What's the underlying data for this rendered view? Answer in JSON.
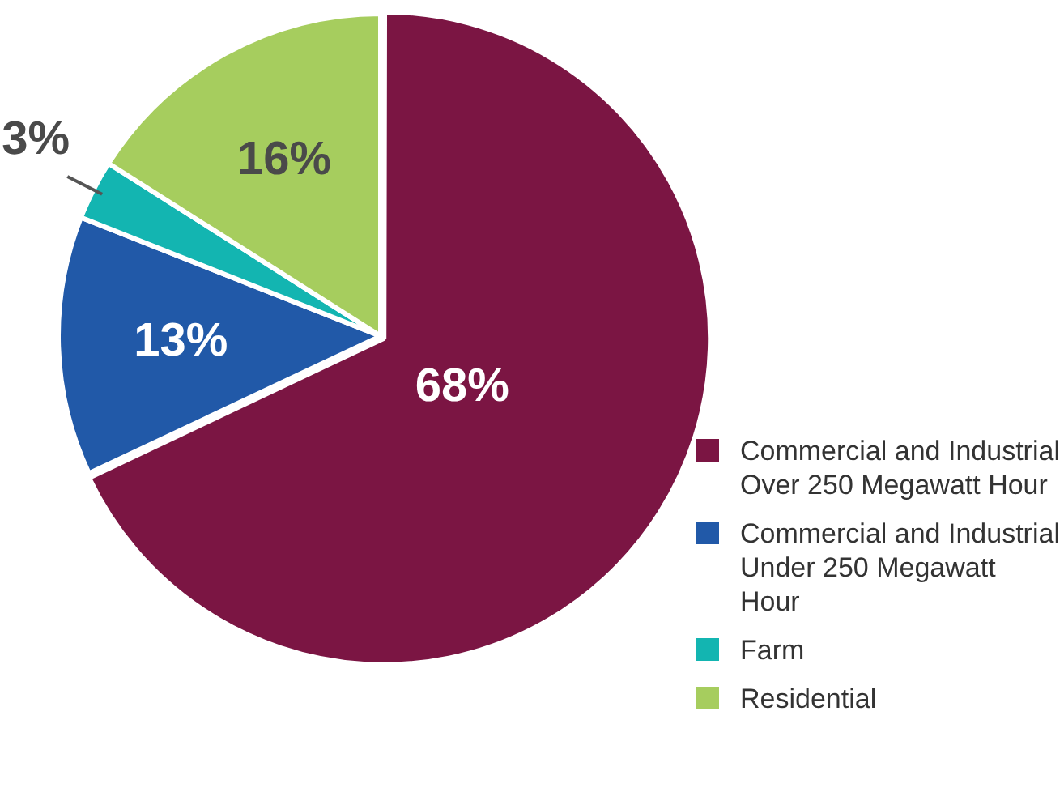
{
  "chart_data": {
    "type": "pie",
    "categories": [
      "Commercial and Industrial Over 250 Megawatt Hour",
      "Commercial and Industrial Under 250 Megawatt Hour",
      "Farm",
      "Residential"
    ],
    "values": [
      68,
      13,
      3,
      16
    ],
    "colors": [
      "#7b1543",
      "#2159a8",
      "#13b5b1",
      "#a6cd5e"
    ],
    "value_labels": [
      "68%",
      "13%",
      "3%",
      "16%"
    ],
    "legend": "bottom right"
  }
}
